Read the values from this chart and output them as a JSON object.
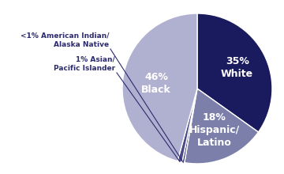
{
  "slices": [
    {
      "label": "White",
      "pct_text": "35%",
      "value": 35,
      "color": "#1a1a5e",
      "text_color": "#ffffff"
    },
    {
      "label": "Hispanic/\nLatino",
      "pct_text": "18%",
      "value": 18,
      "color": "#7b7faa",
      "text_color": "#ffffff"
    },
    {
      "label": "American Indian/\nAlaska Native",
      "pct_text": "<1%",
      "value": 0.5,
      "color": "#3a3a78",
      "text_color": "#ffffff"
    },
    {
      "label": "Asian/\nPacific Islander",
      "pct_text": "1%",
      "value": 1,
      "color": "#4a4a88",
      "text_color": "#ffffff"
    },
    {
      "label": "Black",
      "pct_text": "46%",
      "value": 46,
      "color": "#b0b0d0",
      "text_color": "#ffffff"
    }
  ],
  "text_color": "#2b2b6e",
  "background": "#ffffff",
  "figsize": [
    3.6,
    2.2
  ],
  "dpi": 100
}
